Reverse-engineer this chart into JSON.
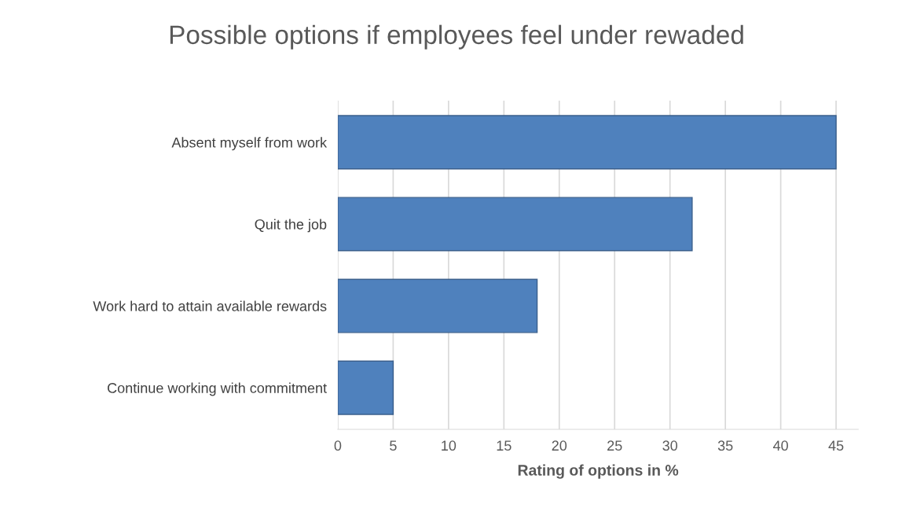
{
  "chart_data": {
    "type": "bar",
    "orientation": "horizontal",
    "title": "Possible options if employees feel under rewaded",
    "xlabel": "Rating of options in %",
    "categories": [
      "Absent myself from work",
      "Quit the job",
      "Work hard to attain available rewards",
      "Continue working with commitment"
    ],
    "values": [
      45,
      32,
      18,
      5
    ],
    "color": "#4f81bd",
    "xlim": [
      0,
      47
    ],
    "xticks": [
      0,
      5,
      10,
      15,
      20,
      25,
      30,
      35,
      40,
      45
    ],
    "grid": "x"
  }
}
